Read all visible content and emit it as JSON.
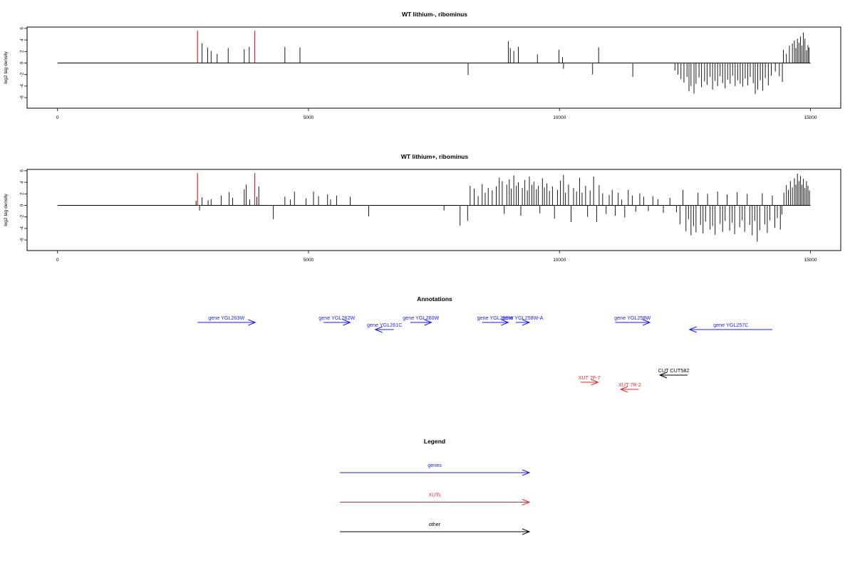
{
  "chart_data": [
    {
      "type": "bar",
      "title": "WT lithium-, ribominus",
      "ylabel": "log2 tag density",
      "xlabel": "",
      "xlim": [
        0,
        15000
      ],
      "ylim": [
        -6,
        6
      ],
      "xticks": [
        "0",
        "5000",
        "10000",
        "15000"
      ],
      "yticks": [
        "6",
        "4",
        "2",
        "0",
        "-2",
        "-4",
        "-6"
      ],
      "grid": false,
      "highlight_color": "#e8262a",
      "bar_color": "#000000",
      "highlighted_bars": [
        {
          "x": 2790,
          "y": 5.6
        },
        {
          "x": 3930,
          "y": 5.6
        }
      ],
      "bars": [
        [
          2880,
          3.4
        ],
        [
          2990,
          2.7
        ],
        [
          3060,
          2.1
        ],
        [
          3180,
          1.6
        ],
        [
          3400,
          2.6
        ],
        [
          3720,
          2.4
        ],
        [
          3820,
          2.8
        ],
        [
          4530,
          2.8
        ],
        [
          4830,
          2.7
        ],
        [
          8180,
          -2.1
        ],
        [
          8980,
          3.8
        ],
        [
          9020,
          2.6
        ],
        [
          9090,
          2.1
        ],
        [
          9180,
          2.8
        ],
        [
          9560,
          1.5
        ],
        [
          9990,
          2.3
        ],
        [
          10060,
          1.0
        ],
        [
          10080,
          -1.0
        ],
        [
          10660,
          -2.0
        ],
        [
          10780,
          2.7
        ],
        [
          11460,
          -2.4
        ],
        [
          12300,
          -1.3
        ],
        [
          12360,
          -2.0
        ],
        [
          12420,
          -2.8
        ],
        [
          12480,
          -3.4
        ],
        [
          12540,
          -2.4
        ],
        [
          12580,
          -4.9
        ],
        [
          12620,
          -4.0
        ],
        [
          12680,
          -5.3
        ],
        [
          12720,
          -3.6
        ],
        [
          12780,
          -2.5
        ],
        [
          12830,
          -4.2
        ],
        [
          12890,
          -3.2
        ],
        [
          12940,
          -3.8
        ],
        [
          13000,
          -2.4
        ],
        [
          13050,
          -4.6
        ],
        [
          13100,
          -3.1
        ],
        [
          13150,
          -4.0
        ],
        [
          13200,
          -2.3
        ],
        [
          13250,
          -3.5
        ],
        [
          13300,
          -4.4
        ],
        [
          13350,
          -2.9
        ],
        [
          13400,
          -3.6
        ],
        [
          13450,
          -2.2
        ],
        [
          13500,
          -4.0
        ],
        [
          13550,
          -3.0
        ],
        [
          13600,
          -3.6
        ],
        [
          13650,
          -4.1
        ],
        [
          13700,
          -2.7
        ],
        [
          13750,
          -3.9
        ],
        [
          13800,
          -2.4
        ],
        [
          13860,
          -3.5
        ],
        [
          13900,
          -5.4
        ],
        [
          13950,
          -4.6
        ],
        [
          14000,
          -3.0
        ],
        [
          14050,
          -4.8
        ],
        [
          14100,
          -2.6
        ],
        [
          14160,
          -3.9
        ],
        [
          14220,
          -2.2
        ],
        [
          14300,
          -1.5
        ],
        [
          14380,
          -2.3
        ],
        [
          14440,
          -3.3
        ],
        [
          14460,
          2.3
        ],
        [
          14520,
          1.6
        ],
        [
          14580,
          3.0
        ],
        [
          14640,
          3.4
        ],
        [
          14680,
          3.9
        ],
        [
          14710,
          2.6
        ],
        [
          14740,
          4.2
        ],
        [
          14770,
          3.5
        ],
        [
          14800,
          4.6
        ],
        [
          14830,
          3.0
        ],
        [
          14860,
          5.3
        ],
        [
          14890,
          4.2
        ],
        [
          14920,
          2.2
        ],
        [
          14950,
          3.1
        ],
        [
          14970,
          2.7
        ]
      ]
    },
    {
      "type": "bar",
      "title": "WT lithium+, ribominus",
      "ylabel": "log2 tag density",
      "xlabel": "",
      "xlim": [
        0,
        15000
      ],
      "ylim": [
        -6,
        6
      ],
      "xticks": [
        "0",
        "5000",
        "10000",
        "15000"
      ],
      "yticks": [
        "6",
        "4",
        "2",
        "0",
        "-2",
        "-4",
        "-6"
      ],
      "grid": false,
      "highlight_color": "#e8262a",
      "bar_color": "#000000",
      "highlighted_bars": [
        {
          "x": 2790,
          "y": 5.6
        },
        {
          "x": 3930,
          "y": 5.6
        }
      ],
      "bars": [
        [
          2760,
          0.8
        ],
        [
          2830,
          -0.9
        ],
        [
          2880,
          1.4
        ],
        [
          3000,
          0.9
        ],
        [
          3060,
          1.1
        ],
        [
          3260,
          1.7
        ],
        [
          3420,
          2.3
        ],
        [
          3490,
          1.3
        ],
        [
          3720,
          2.8
        ],
        [
          3760,
          3.6
        ],
        [
          3830,
          1.0
        ],
        [
          3970,
          1.5
        ],
        [
          4010,
          3.3
        ],
        [
          4300,
          -2.4
        ],
        [
          4530,
          1.5
        ],
        [
          4640,
          1.0
        ],
        [
          4720,
          2.4
        ],
        [
          4950,
          1.2
        ],
        [
          5100,
          2.4
        ],
        [
          5200,
          1.6
        ],
        [
          5380,
          1.9
        ],
        [
          5440,
          1.0
        ],
        [
          5560,
          1.7
        ],
        [
          5830,
          1.5
        ],
        [
          6200,
          -1.9
        ],
        [
          7700,
          -0.9
        ],
        [
          8020,
          -3.5
        ],
        [
          8170,
          -2.7
        ],
        [
          8220,
          3.4
        ],
        [
          8300,
          2.9
        ],
        [
          8380,
          1.6
        ],
        [
          8460,
          3.7
        ],
        [
          8520,
          2.2
        ],
        [
          8580,
          3.0
        ],
        [
          8660,
          2.6
        ],
        [
          8740,
          3.3
        ],
        [
          8800,
          4.8
        ],
        [
          8860,
          4.2
        ],
        [
          8900,
          -1.5
        ],
        [
          8950,
          3.6
        ],
        [
          9000,
          4.5
        ],
        [
          9040,
          2.9
        ],
        [
          9090,
          5.2
        ],
        [
          9140,
          3.4
        ],
        [
          9180,
          4.0
        ],
        [
          9230,
          -1.8
        ],
        [
          9260,
          3.0
        ],
        [
          9310,
          4.4
        ],
        [
          9360,
          2.6
        ],
        [
          9400,
          5.0
        ],
        [
          9450,
          3.6
        ],
        [
          9490,
          4.1
        ],
        [
          9540,
          2.8
        ],
        [
          9580,
          3.4
        ],
        [
          9610,
          -1.4
        ],
        [
          9660,
          4.7
        ],
        [
          9700,
          3.1
        ],
        [
          9750,
          3.8
        ],
        [
          9800,
          2.5
        ],
        [
          9860,
          3.3
        ],
        [
          9900,
          -2.3
        ],
        [
          9960,
          2.7
        ],
        [
          10020,
          4.3
        ],
        [
          10080,
          5.3
        ],
        [
          10120,
          2.2
        ],
        [
          10180,
          3.6
        ],
        [
          10230,
          -2.9
        ],
        [
          10280,
          3.0
        ],
        [
          10340,
          2.4
        ],
        [
          10400,
          4.8
        ],
        [
          10450,
          2.2
        ],
        [
          10520,
          3.4
        ],
        [
          10560,
          -2.0
        ],
        [
          10610,
          2.6
        ],
        [
          10680,
          5.0
        ],
        [
          10740,
          -2.9
        ],
        [
          10790,
          3.5
        ],
        [
          10860,
          2.1
        ],
        [
          10930,
          -1.5
        ],
        [
          10990,
          1.8
        ],
        [
          11050,
          2.7
        ],
        [
          11110,
          -1.8
        ],
        [
          11170,
          2.2
        ],
        [
          11240,
          1.0
        ],
        [
          11300,
          -2.1
        ],
        [
          11370,
          2.7
        ],
        [
          11450,
          1.7
        ],
        [
          11520,
          -1.1
        ],
        [
          11600,
          2.1
        ],
        [
          11680,
          1.5
        ],
        [
          11770,
          -1.0
        ],
        [
          11860,
          1.6
        ],
        [
          11960,
          1.1
        ],
        [
          12070,
          -1.3
        ],
        [
          12200,
          1.3
        ],
        [
          12330,
          -1.2
        ],
        [
          12400,
          -3.3
        ],
        [
          12460,
          2.7
        ],
        [
          12520,
          -4.5
        ],
        [
          12570,
          -2.4
        ],
        [
          12620,
          -5.2
        ],
        [
          12670,
          -3.6
        ],
        [
          12720,
          -4.7
        ],
        [
          12760,
          2.2
        ],
        [
          12810,
          -3.4
        ],
        [
          12860,
          -4.9
        ],
        [
          12910,
          -2.8
        ],
        [
          12950,
          2.0
        ],
        [
          13000,
          -4.2
        ],
        [
          13050,
          -3.6
        ],
        [
          13100,
          -5.1
        ],
        [
          13150,
          2.4
        ],
        [
          13200,
          -3.2
        ],
        [
          13250,
          -4.6
        ],
        [
          13300,
          -2.7
        ],
        [
          13340,
          1.9
        ],
        [
          13390,
          -4.4
        ],
        [
          13440,
          -3.0
        ],
        [
          13490,
          -5.0
        ],
        [
          13540,
          2.3
        ],
        [
          13590,
          -3.8
        ],
        [
          13640,
          -2.6
        ],
        [
          13690,
          -4.6
        ],
        [
          13740,
          2.0
        ],
        [
          13790,
          -3.4
        ],
        [
          13840,
          -5.2
        ],
        [
          13890,
          -2.7
        ],
        [
          13940,
          -6.3
        ],
        [
          13990,
          -4.3
        ],
        [
          14040,
          2.1
        ],
        [
          14090,
          -3.3
        ],
        [
          14140,
          -4.8
        ],
        [
          14190,
          -2.6
        ],
        [
          14240,
          1.7
        ],
        [
          14290,
          -3.9
        ],
        [
          14340,
          -2.2
        ],
        [
          14400,
          -4.2
        ],
        [
          14430,
          -1.6
        ],
        [
          14470,
          2.2
        ],
        [
          14520,
          3.5
        ],
        [
          14560,
          2.7
        ],
        [
          14600,
          4.2
        ],
        [
          14640,
          3.1
        ],
        [
          14680,
          4.7
        ],
        [
          14710,
          3.6
        ],
        [
          14740,
          5.5
        ],
        [
          14770,
          4.2
        ],
        [
          14800,
          5.1
        ],
        [
          14830,
          3.6
        ],
        [
          14860,
          4.6
        ],
        [
          14890,
          3.0
        ],
        [
          14920,
          4.2
        ],
        [
          14950,
          3.4
        ],
        [
          14980,
          2.6
        ]
      ]
    },
    {
      "type": "annotation_track",
      "title": "Annotations",
      "xlim": [
        0,
        15000
      ],
      "features": [
        {
          "label": "gene YGL263W",
          "start": 2790,
          "end": 3940,
          "row": 0,
          "color": "#1a1aff"
        },
        {
          "label": "gene YGL262W",
          "start": 5300,
          "end": 5830,
          "row": 0,
          "color": "#1a1aff"
        },
        {
          "label": "gene YGL261C",
          "start": 6700,
          "end": 6330,
          "row": 1,
          "color": "#1a1aff"
        },
        {
          "label": "gene YGL260W",
          "start": 7030,
          "end": 7450,
          "row": 0,
          "color": "#1a1aff"
        },
        {
          "label": "gene YGL259W",
          "start": 8460,
          "end": 8980,
          "row": 0,
          "color": "#1a1aff"
        },
        {
          "label": "gene YGL258W-A",
          "start": 9130,
          "end": 9400,
          "row": 0,
          "color": "#1a1aff"
        },
        {
          "label": "gene YGL258W",
          "start": 11110,
          "end": 11800,
          "row": 0,
          "color": "#1a1aff"
        },
        {
          "label": "gene YGL257C",
          "start": 14240,
          "end": 12590,
          "row": 1,
          "color": "#1a1aff"
        },
        {
          "label": "CUT CUT582",
          "start": 12550,
          "end": 12000,
          "row": 5,
          "color": "#000000"
        },
        {
          "label": "XUT 7F-7",
          "start": 10420,
          "end": 10770,
          "row": 6,
          "color": "#e8262a"
        },
        {
          "label": "XUT 7R-2",
          "start": 11580,
          "end": 11220,
          "row": 7,
          "color": "#e8262a"
        }
      ]
    },
    {
      "type": "legend",
      "title": "Legend",
      "items": [
        {
          "label": "genes",
          "color": "#1a1aff"
        },
        {
          "label": "XUTs",
          "color": "#e8262a"
        },
        {
          "label": "other",
          "color": "#000000"
        }
      ]
    }
  ]
}
